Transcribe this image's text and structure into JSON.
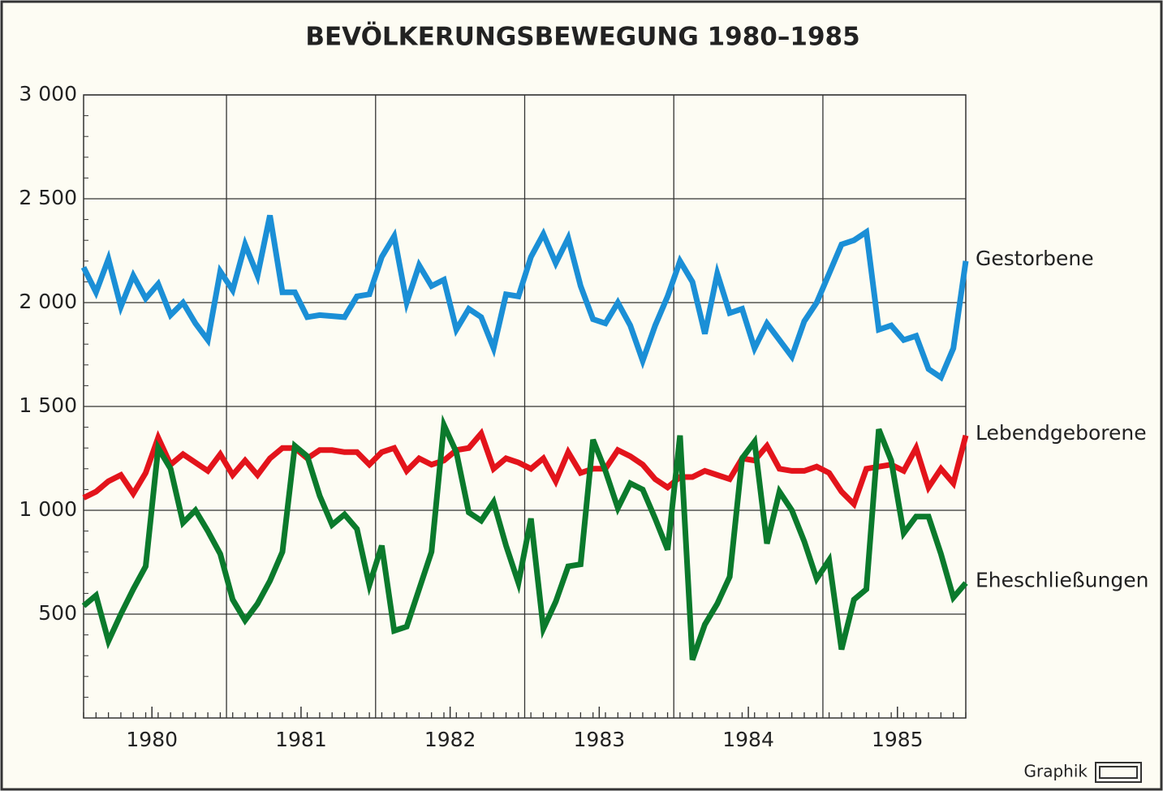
{
  "chart_data": {
    "type": "line",
    "title": "BEVÖLKERUNGSBEWEGUNG 1980–1985",
    "credit": "Graphik",
    "categories": [
      null,
      null,
      null,
      null,
      null,
      "1980",
      null,
      null,
      null,
      null,
      null,
      null,
      null,
      null,
      null,
      null,
      null,
      "1981",
      null,
      null,
      null,
      null,
      null,
      null,
      null,
      null,
      null,
      null,
      null,
      "1982",
      null,
      null,
      null,
      null,
      null,
      null,
      null,
      null,
      null,
      null,
      null,
      "1983",
      null,
      null,
      null,
      null,
      null,
      null,
      null,
      null,
      null,
      null,
      null,
      "1984",
      null,
      null,
      null,
      null,
      null,
      null,
      null,
      null,
      null,
      null,
      null,
      "1985",
      null,
      null,
      null,
      null,
      null,
      null
    ],
    "series": [
      {
        "name": "Gestorbene",
        "color": "#1b8fd6",
        "values": [
          2170,
          2050,
          2210,
          1980,
          2130,
          2020,
          2090,
          1940,
          2000,
          1900,
          1820,
          2150,
          2060,
          2280,
          2130,
          2420,
          2050,
          2050,
          1930,
          1940,
          1935,
          1930,
          2030,
          2040,
          2220,
          2320,
          2000,
          2180,
          2080,
          2110,
          1870,
          1970,
          1930,
          1780,
          2040,
          2030,
          2220,
          2330,
          2190,
          2310,
          2080,
          1920,
          1900,
          2000,
          1890,
          1720,
          1890,
          2030,
          2200,
          2100,
          1850,
          2140,
          1950,
          1970,
          1780,
          1900,
          1820,
          1740,
          1910,
          2000,
          2140,
          2280,
          2300,
          2340,
          1870,
          1890,
          1820,
          1840,
          1680,
          1640,
          1780,
          2200
        ]
      },
      {
        "name": "Lebendgeborene",
        "color": "#e3141b",
        "values": [
          1060,
          1090,
          1140,
          1170,
          1080,
          1180,
          1350,
          1220,
          1270,
          1230,
          1190,
          1270,
          1170,
          1240,
          1170,
          1250,
          1300,
          1300,
          1250,
          1290,
          1290,
          1280,
          1280,
          1220,
          1280,
          1300,
          1190,
          1250,
          1220,
          1240,
          1290,
          1300,
          1370,
          1200,
          1250,
          1230,
          1200,
          1250,
          1140,
          1280,
          1180,
          1200,
          1200,
          1290,
          1260,
          1220,
          1150,
          1110,
          1160,
          1160,
          1190,
          1170,
          1150,
          1250,
          1240,
          1310,
          1200,
          1190,
          1190,
          1210,
          1180,
          1090,
          1030,
          1200,
          1210,
          1220,
          1190,
          1300,
          1110,
          1200,
          1130,
          1360
        ]
      },
      {
        "name": "Eheschließungen",
        "color": "#0b7a2c",
        "values": [
          540,
          590,
          370,
          500,
          620,
          730,
          1300,
          1200,
          940,
          1000,
          900,
          790,
          570,
          470,
          550,
          660,
          800,
          1310,
          1260,
          1070,
          930,
          980,
          910,
          640,
          830,
          420,
          440,
          620,
          800,
          1410,
          1280,
          990,
          950,
          1040,
          830,
          650,
          960,
          430,
          560,
          730,
          740,
          1340,
          1190,
          1010,
          1130,
          1100,
          960,
          810,
          1360,
          280,
          450,
          550,
          680,
          1250,
          1330,
          840,
          1090,
          1000,
          850,
          670,
          760,
          330,
          570,
          620,
          1390,
          1240,
          890,
          970,
          970,
          790,
          580,
          650
        ]
      }
    ],
    "ylim": [
      0,
      3000
    ],
    "yticks": [
      500,
      {
        "value": 1000,
        "label": "1 000"
      },
      {
        "value": 1500,
        "label": "1 500"
      },
      {
        "value": 2000,
        "label": "2 000"
      },
      {
        "value": 2500,
        "label": "2 500"
      },
      {
        "value": 3000,
        "label": "3 000"
      }
    ],
    "grid": true
  }
}
